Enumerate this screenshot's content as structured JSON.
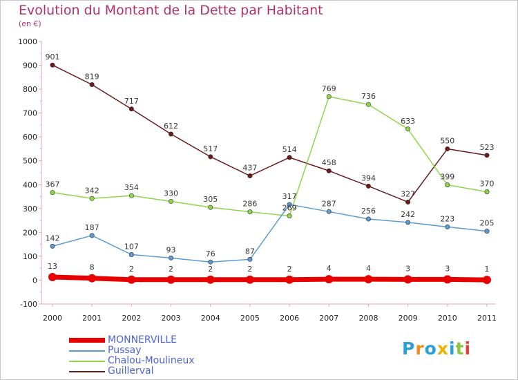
{
  "header": {
    "title": "Evolution du Montant de la Dette par Habitant",
    "unit": "(en €)"
  },
  "logo": {
    "text": "Proxiti",
    "colors": [
      "#2aa0d8",
      "#f08c1e",
      "#2aa0d8",
      "#e8b400",
      "#2aa0d8",
      "#8cc63f",
      "#e63c32"
    ]
  },
  "chart_data": {
    "type": "line",
    "x": [
      2000,
      2001,
      2002,
      2003,
      2004,
      2005,
      2006,
      2007,
      2008,
      2009,
      2010,
      2011
    ],
    "ylim": [
      -100,
      1000
    ],
    "yticks": [
      -100,
      0,
      100,
      200,
      300,
      400,
      500,
      600,
      700,
      800,
      900,
      1000
    ],
    "grid": false,
    "legend_position": "bottom-left",
    "series": [
      {
        "name": "MONNERVILLE",
        "color": "#e80000",
        "values": [
          13,
          8,
          2,
          2,
          2,
          2,
          2,
          4,
          4,
          3,
          3,
          1
        ]
      },
      {
        "name": "Pussay",
        "color": "#5a9ad2",
        "values": [
          142,
          187,
          107,
          93,
          76,
          87,
          317,
          287,
          256,
          242,
          223,
          205
        ]
      },
      {
        "name": "Chalou-Moulineux",
        "color": "#8ed54a",
        "values": [
          367,
          342,
          354,
          330,
          305,
          286,
          269,
          769,
          736,
          633,
          399,
          370
        ]
      },
      {
        "name": "Guillerval",
        "color": "#6b1a1a",
        "values": [
          901,
          819,
          717,
          612,
          517,
          437,
          514,
          458,
          394,
          327,
          550,
          523
        ]
      }
    ]
  }
}
